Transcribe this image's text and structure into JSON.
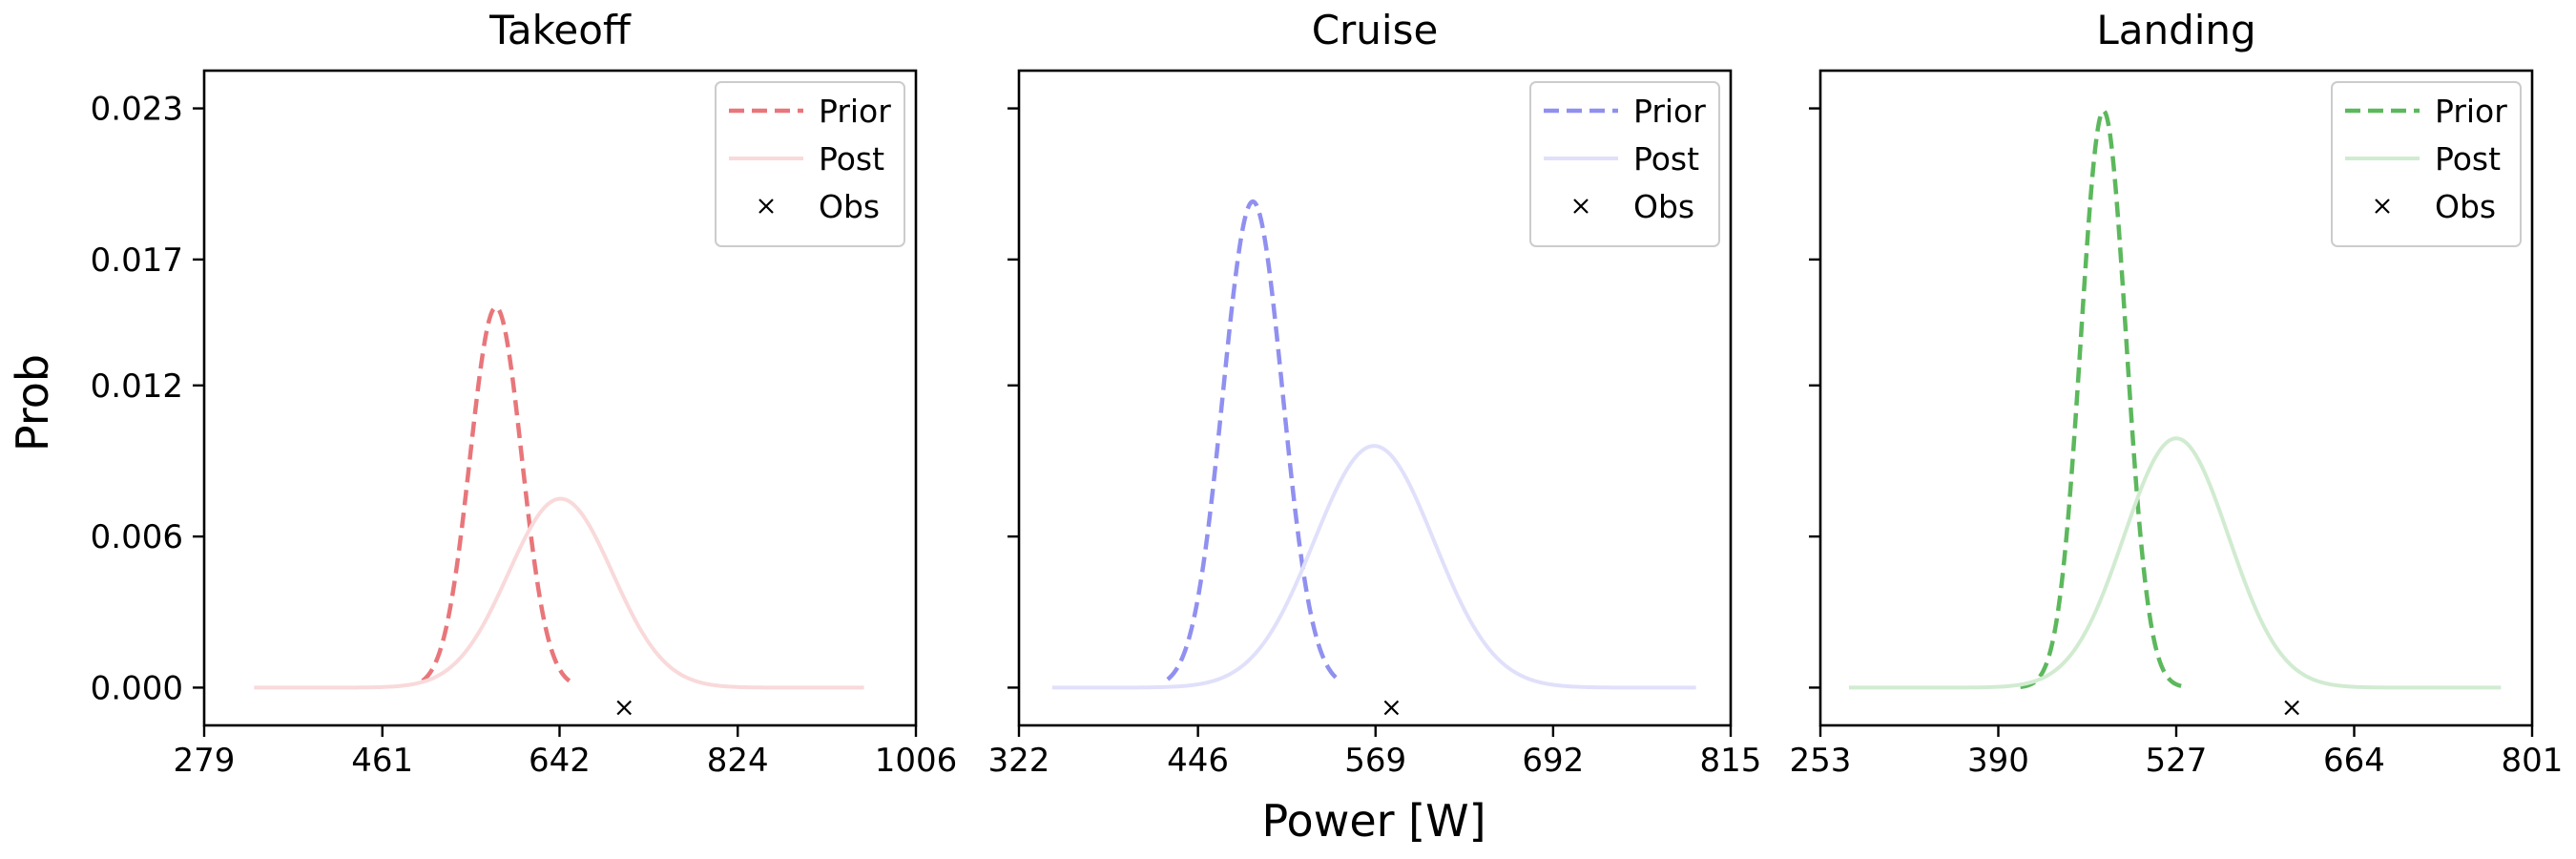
{
  "figure": {
    "xlabel": "Power [W]",
    "ylabel": "Prob"
  },
  "chart_data": [
    {
      "type": "line",
      "title": "Takeoff",
      "color": "#e8767a",
      "xlim": [
        279,
        1006
      ],
      "xticks": [
        279,
        461,
        642,
        824,
        1006
      ],
      "ylim": [
        -0.0015,
        0.0245
      ],
      "yticks": [
        "0.000",
        "0.006",
        "0.012",
        "0.017",
        "0.023"
      ],
      "ytick_values": [
        0,
        0.006,
        0.012,
        0.017,
        0.023
      ],
      "legend": {
        "position": "top-right",
        "entries": [
          "Prior",
          "Post",
          "Obs"
        ]
      },
      "series": [
        {
          "name": "Prior",
          "style": "dashed",
          "mean": 577,
          "peak": 0.0151,
          "range": [
            502,
            652
          ]
        },
        {
          "name": "Post",
          "style": "solid-light",
          "mean": 643,
          "peak": 0.0075,
          "range": [
            330,
            953
          ]
        }
      ],
      "observation": {
        "name": "Obs",
        "x": 708,
        "y": -0.0008
      }
    },
    {
      "type": "line",
      "title": "Cruise",
      "color": "#9090f0",
      "xlim": [
        322,
        815
      ],
      "xticks": [
        322,
        446,
        569,
        692,
        815
      ],
      "ylim": [
        -0.0015,
        0.0245
      ],
      "yticks": [
        "0.000",
        "0.006",
        "0.012",
        "0.017",
        "0.023"
      ],
      "ytick_values": [
        0,
        0.006,
        0.012,
        0.017,
        0.023
      ],
      "legend": {
        "position": "top-right",
        "entries": [
          "Prior",
          "Post",
          "Obs"
        ]
      },
      "series": [
        {
          "name": "Prior",
          "style": "dashed",
          "mean": 484,
          "peak": 0.0193,
          "range": [
            425,
            543
          ]
        },
        {
          "name": "Post",
          "style": "solid-light",
          "mean": 568,
          "peak": 0.0096,
          "range": [
            345,
            791
          ]
        }
      ],
      "observation": {
        "name": "Obs",
        "x": 580,
        "y": -0.0008
      }
    },
    {
      "type": "line",
      "title": "Landing",
      "color": "#5cb85c",
      "xlim": [
        253,
        801
      ],
      "xticks": [
        253,
        390,
        527,
        664,
        801
      ],
      "ylim": [
        -0.0015,
        0.0245
      ],
      "yticks": [
        "0.000",
        "0.006",
        "0.012",
        "0.017",
        "0.023"
      ],
      "ytick_values": [
        0,
        0.006,
        0.012,
        0.017,
        0.023
      ],
      "legend": {
        "position": "top-right",
        "entries": [
          "Prior",
          "Post",
          "Obs"
        ]
      },
      "series": [
        {
          "name": "Prior",
          "style": "dashed",
          "mean": 471,
          "peak": 0.0229,
          "range": [
            407,
            535
          ]
        },
        {
          "name": "Post",
          "style": "solid-light",
          "mean": 527,
          "peak": 0.0099,
          "range": [
            275,
            777
          ]
        }
      ],
      "observation": {
        "name": "Obs",
        "x": 616,
        "y": -0.0008
      }
    }
  ]
}
